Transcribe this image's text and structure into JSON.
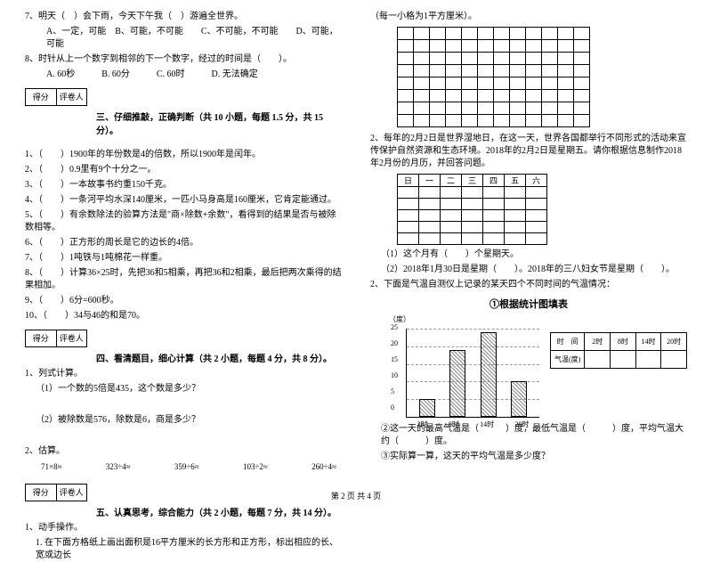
{
  "left": {
    "q7": "7、明天（　）会下雨，今天下午我（　）游遍全世界。",
    "q7opts": "A、一定，可能　B、可能，不可能　　C、不可能，不可能　　D、可能，可能",
    "q8": "8、时针从上一个数字到相邻的下一个数字，经过的时间是（　　）。",
    "q8opts": "A. 60秒　　　B. 60分　　　C. 60时　　　D. 无法确定",
    "score1a": "得分",
    "score1b": "评卷人",
    "sec3": "三、仔细推敲，正确判断（共 10 小题，每题 1.5 分，共 15 分）。",
    "j1": "1、（　　）1900年的年份数是4的倍数，所以1900年是闰年。",
    "j2": "2、（　　）0.9里有9个十分之一。",
    "j3": "3、（　　）一本故事书约重150千克。",
    "j4": "4、（　　）一条河平均水深140厘米，一匹小马身高是160厘米，它肯定能通过。",
    "j5": "5、（　　）有余数除法的验算方法是\"商×除数+余数\"，看得到的结果是否与被除数相等。",
    "j6": "6、（　　）正方形的周长是它的边长的4倍。",
    "j7": "7、（　　）1吨铁与1吨棉花一样重。",
    "j8": "8、（　　）计算36×25时，先把36和5相乘，再把36和2相乘，最后把两次乘得的结果相加。",
    "j9": "9、（　　）6分=600秒。",
    "j10": "10、（　　）34与46的和是70。",
    "score2a": "得分",
    "score2b": "评卷人",
    "sec4": "四、看清题目，细心计算（共 2 小题，每题 4 分，共 8 分）。",
    "calc1": "1、列式计算。",
    "calc1a": "（1）一个数的5倍是435，这个数是多少？",
    "calc1b": "（2）被除数是576，除数是6，商是多少？",
    "est": "2、估算。",
    "est_items": [
      "71×8≈",
      "323÷4≈",
      "359÷6≈",
      "103÷2≈",
      "260÷4≈"
    ],
    "score3a": "得分",
    "score3b": "评卷人",
    "sec5": "五、认真思考，综合能力（共 2 小题，每题 7 分，共 14 分）。",
    "op1": "1、动手操作。",
    "op1a": "1. 在下面方格纸上画出面积是16平方厘米的长方形和正方形，标出相应的长、宽或边长"
  },
  "right": {
    "gridnote": "（每一小格为1平方厘米）。",
    "q2": "2、每年的2月2日是世界湿地日，在这一天，世界各国都举行不同形式的活动来宣传保护自然资源和生态环境。2018年的2月2日是星期五。请你根据信息制作2018年2月份的月历，并回答问题。",
    "week": [
      "日",
      "一",
      "二",
      "三",
      "四",
      "五",
      "六"
    ],
    "q2a": "（1）这个月有（　　）个星期天。",
    "q2b": "（2）2018年1月30日是星期（　　）。2018年的三八妇女节是星期（　　）。",
    "q3": "2、下面是气温自测仪上记录的某天四个不同时间的气温情况：",
    "chart_title": "①根据统计图填表",
    "chart": {
      "y_label": "（度）",
      "y_ticks": [
        "0",
        "5",
        "10",
        "15",
        "20",
        "25"
      ],
      "x_labels": [
        "2时",
        "8时",
        "14时",
        "20时"
      ],
      "values": [
        5,
        19,
        24,
        10
      ],
      "ymax": 25,
      "bar_color_desc": "hatched"
    },
    "stat_headers": [
      "时　间",
      "2时",
      "8时",
      "14时",
      "20时"
    ],
    "stat_row": "气温(度)",
    "q3b": "②这一天的最高气温是（　　　）度，最低气温是（　　　）度，平均气温大约（　　　）度。",
    "q3c": "③实际算一算，这天的平均气温是多少度？"
  },
  "footer": "第 2 页 共 4 页"
}
